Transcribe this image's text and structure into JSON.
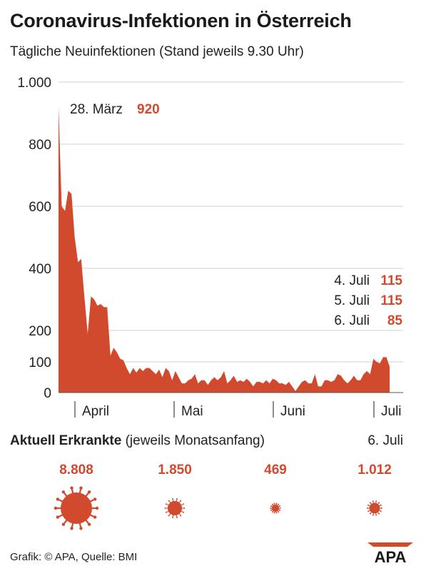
{
  "header": {
    "title": "Coronavirus-Infektionen in Österreich",
    "subtitle": "Tägliche Neuinfektionen (Stand jeweils 9.30 Uhr)"
  },
  "chart_data": {
    "type": "area",
    "title": "Coronavirus-Infektionen in Österreich",
    "subtitle": "Tägliche Neuinfektionen (Stand jeweils 9.30 Uhr)",
    "ylim": [
      0,
      1000
    ],
    "yticks": [
      0,
      100,
      200,
      400,
      600,
      800,
      1000
    ],
    "ytick_labels": [
      "0",
      "100",
      "200",
      "400",
      "600",
      "800",
      "1.000"
    ],
    "xtick_labels": [
      "April",
      "Mai",
      "Juni",
      "Juli"
    ],
    "x_start": "2020-03-27",
    "x_end": "2020-07-06",
    "color": "#d24a2e",
    "values": [
      920,
      600,
      585,
      650,
      640,
      500,
      420,
      430,
      305,
      190,
      310,
      300,
      280,
      285,
      275,
      275,
      120,
      145,
      130,
      110,
      105,
      80,
      60,
      80,
      65,
      80,
      70,
      80,
      80,
      70,
      60,
      75,
      50,
      80,
      70,
      40,
      70,
      50,
      30,
      30,
      40,
      45,
      60,
      30,
      40,
      40,
      25,
      40,
      50,
      40,
      50,
      70,
      30,
      40,
      55,
      35,
      40,
      35,
      45,
      35,
      20,
      35,
      35,
      30,
      40,
      30,
      45,
      40,
      30,
      30,
      25,
      35,
      20,
      5,
      20,
      35,
      40,
      30,
      30,
      60,
      20,
      20,
      40,
      40,
      35,
      40,
      60,
      55,
      40,
      30,
      40,
      55,
      40,
      40,
      60,
      70,
      60,
      110,
      100,
      95,
      115,
      115,
      85
    ],
    "annotations": [
      {
        "label": "28. März",
        "value": "920"
      },
      {
        "label": "4. Juli",
        "value": "115"
      },
      {
        "label": "5. Juli",
        "value": "115"
      },
      {
        "label": "6. Juli",
        "value": "85"
      }
    ]
  },
  "cases": {
    "title": "Aktuell Erkrankte",
    "note": "(jeweils Monatsanfang)",
    "last_date": "6. Juli",
    "values": [
      {
        "value": "8.808",
        "amount": 8808
      },
      {
        "value": "1.850",
        "amount": 1850
      },
      {
        "value": "469",
        "amount": 469
      },
      {
        "value": "1.012",
        "amount": 1012
      }
    ]
  },
  "footer": {
    "source": "Grafik: © APA, Quelle: BMI",
    "logo": "APA"
  },
  "colors": {
    "accent": "#d24a2e",
    "text": "#222222",
    "grid": "#cccccc"
  }
}
